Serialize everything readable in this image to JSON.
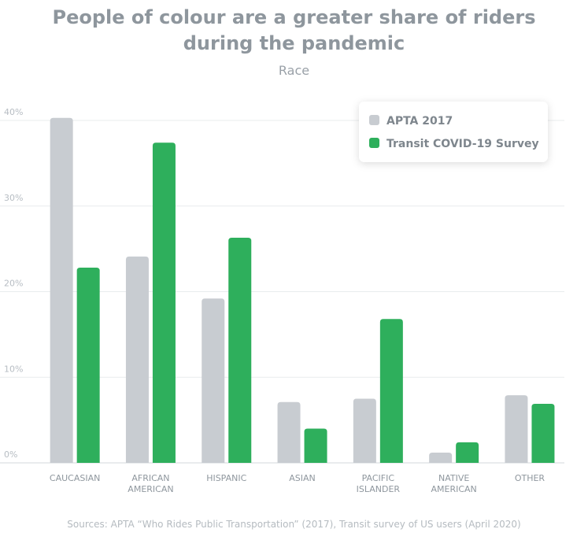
{
  "chart_data": {
    "type": "bar",
    "title_lines": [
      "People of colour are a greater share of riders",
      "during the pandemic"
    ],
    "subtitle": "Race",
    "categories": [
      [
        "CAUCASIAN"
      ],
      [
        "AFRICAN",
        "AMERICAN"
      ],
      [
        "HISPANIC"
      ],
      [
        "ASIAN"
      ],
      [
        "PACIFIC",
        "ISLANDER"
      ],
      [
        "NATIVE",
        "AMERICAN"
      ],
      [
        "OTHER"
      ]
    ],
    "series": [
      {
        "name": "APTA 2017",
        "color": "#c8ccd1",
        "values": [
          40.3,
          24.1,
          19.2,
          7.1,
          7.5,
          1.2,
          7.9
        ]
      },
      {
        "name": "Transit COVID-19 Survey",
        "color": "#2eaf5c",
        "values": [
          22.8,
          37.4,
          26.3,
          4.0,
          16.8,
          2.4,
          6.9
        ]
      }
    ],
    "y_ticks": [
      {
        "value": 0,
        "label": "0%"
      },
      {
        "value": 10,
        "label": "10%"
      },
      {
        "value": 20,
        "label": "20%"
      },
      {
        "value": 30,
        "label": "30%"
      },
      {
        "value": 40,
        "label": "40%"
      }
    ],
    "ylim": [
      0,
      40
    ],
    "grid": true,
    "legend_position": "top-right",
    "source": "Sources: APTA “Who Rides Public Transportation” (2017), Transit survey of US users (April 2020)"
  }
}
